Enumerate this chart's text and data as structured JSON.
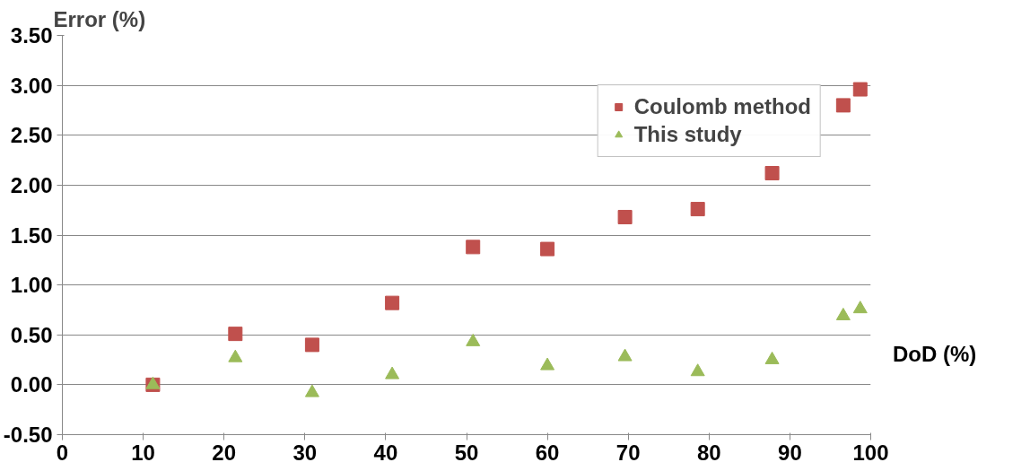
{
  "chart_data": {
    "type": "scatter",
    "xlabel": "DoD (%)",
    "ylabel": "Error (%)",
    "xlim": [
      0,
      100
    ],
    "xticks": [
      0,
      10,
      20,
      30,
      40,
      50,
      60,
      70,
      80,
      90,
      100
    ],
    "ylim": [
      -0.5,
      3.5
    ],
    "yticks": [
      {
        "value": -0.5,
        "label": "-0.50"
      },
      {
        "value": 0,
        "label": "0.00"
      },
      {
        "value": 0.5,
        "label": "0.50"
      },
      {
        "value": 1,
        "label": "1.00"
      },
      {
        "value": 1.5,
        "label": "1.50"
      },
      {
        "value": 2,
        "label": "2.00"
      },
      {
        "value": 2.5,
        "label": "2.50"
      },
      {
        "value": 3,
        "label": "3.00"
      },
      {
        "value": 3.5,
        "label": "3.50"
      }
    ],
    "grid": "y",
    "legend": "top right",
    "x": [
      11.2,
      21.4,
      30.9,
      40.8,
      50.8,
      60.0,
      69.6,
      78.6,
      87.8,
      96.6,
      98.7
    ],
    "series": [
      {
        "name": "Coulomb method",
        "color": "#c0504d",
        "marker": "square",
        "values": [
          0.0,
          0.51,
          0.4,
          0.82,
          1.38,
          1.36,
          1.68,
          1.76,
          2.12,
          2.8,
          2.96
        ]
      },
      {
        "name": "This study",
        "color": "#9bbb59",
        "marker": "triangle",
        "values": [
          0.0,
          0.27,
          -0.08,
          0.1,
          0.43,
          0.19,
          0.28,
          0.13,
          0.25,
          0.69,
          0.76
        ]
      }
    ]
  }
}
